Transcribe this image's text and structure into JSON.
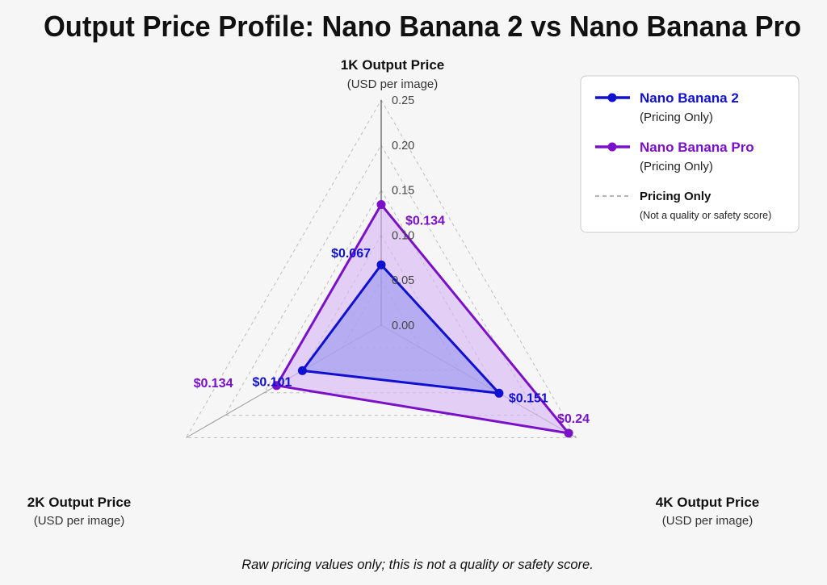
{
  "chart_data": {
    "type": "radar",
    "title": "Output Price Profile: Nano Banana 2 vs Nano Banana Pro",
    "axes": [
      {
        "name": "1K Output Price",
        "unit": "(USD per image)"
      },
      {
        "name": "4K Output Price",
        "unit": "(USD per image)"
      },
      {
        "name": "2K Output Price",
        "unit": "(USD per image)"
      }
    ],
    "radial_range": [
      0,
      0.25
    ],
    "radial_ticks": [
      "0.00",
      "0.05",
      "0.10",
      "0.15",
      "0.20",
      "0.25"
    ],
    "grid": "dashed",
    "series": [
      {
        "name": "Nano Banana 2",
        "subtitle": "(Pricing Only)",
        "color": "#1010d0",
        "fill": "#9a96f0",
        "values": [
          0.067,
          0.151,
          0.101
        ],
        "labels": [
          "$0.067",
          "$0.151",
          "$0.101"
        ]
      },
      {
        "name": "Nano Banana Pro",
        "subtitle": "(Pricing Only)",
        "color": "#7a10c8",
        "fill": "#d7b6f4",
        "values": [
          0.134,
          0.24,
          0.134
        ],
        "labels": [
          "$0.134",
          "$0.24",
          "$0.134"
        ]
      }
    ],
    "legend": {
      "position": "top-right",
      "note_title": "Pricing Only",
      "note_sub": "(Not a quality or safety score)"
    },
    "footnote": "Raw pricing values only; this is not a quality or safety score."
  }
}
